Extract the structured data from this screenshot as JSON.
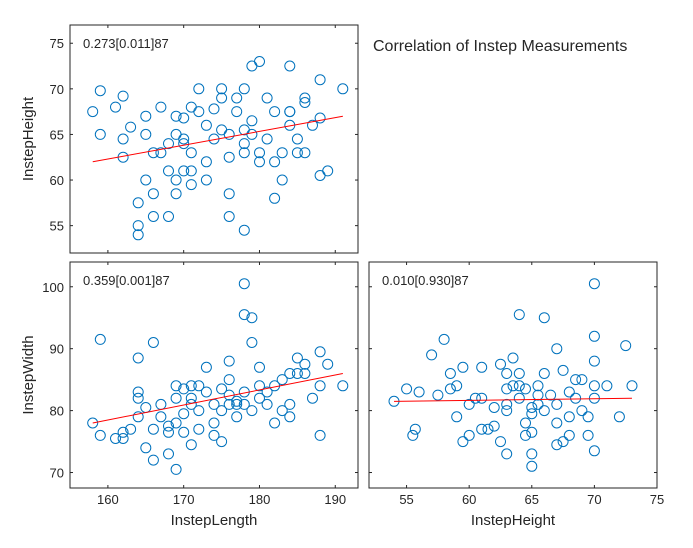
{
  "chart_data": [
    {
      "type": "scatter",
      "panel": "top-left",
      "annotation": "0.273[0.011]87",
      "xlabel": "",
      "ylabel": "InstepHeight",
      "xlim": [
        155,
        193
      ],
      "ylim": [
        52,
        77
      ],
      "xticks": [
        160,
        170,
        180,
        190
      ],
      "yticks": [
        55,
        60,
        65,
        70,
        75
      ],
      "show_xtick_labels": false,
      "fit_line": {
        "x": [
          158,
          191
        ],
        "y": [
          62.0,
          67.0
        ]
      },
      "points": [
        [
          158,
          67.5
        ],
        [
          159,
          69.8
        ],
        [
          159,
          65
        ],
        [
          161,
          68
        ],
        [
          162,
          69.2
        ],
        [
          162,
          64.5
        ],
        [
          162,
          62.5
        ],
        [
          163,
          65.8
        ],
        [
          164,
          55
        ],
        [
          164,
          54
        ],
        [
          164,
          57.5
        ],
        [
          165,
          65
        ],
        [
          165,
          67
        ],
        [
          165,
          60
        ],
        [
          166,
          58.5
        ],
        [
          166,
          63
        ],
        [
          166,
          56
        ],
        [
          167,
          63
        ],
        [
          167,
          68
        ],
        [
          168,
          56
        ],
        [
          168,
          64
        ],
        [
          168,
          61
        ],
        [
          169,
          65
        ],
        [
          169,
          67
        ],
        [
          169,
          58.5
        ],
        [
          169,
          60
        ],
        [
          170,
          64.5
        ],
        [
          170,
          64
        ],
        [
          170,
          66.8
        ],
        [
          170,
          61
        ],
        [
          171,
          59.5
        ],
        [
          171,
          61
        ],
        [
          171,
          63
        ],
        [
          171,
          68
        ],
        [
          172,
          70
        ],
        [
          172,
          67.5
        ],
        [
          173,
          66
        ],
        [
          173,
          60
        ],
        [
          173,
          62
        ],
        [
          174,
          67.8
        ],
        [
          174,
          64.5
        ],
        [
          175,
          70
        ],
        [
          175,
          69
        ],
        [
          175,
          65.5
        ],
        [
          176,
          65
        ],
        [
          176,
          58.5
        ],
        [
          176,
          56
        ],
        [
          176,
          62.5
        ],
        [
          177,
          69
        ],
        [
          177,
          67.5
        ],
        [
          178,
          70
        ],
        [
          178,
          65.5
        ],
        [
          178,
          64
        ],
        [
          178,
          63
        ],
        [
          178,
          54.5
        ],
        [
          179,
          72.5
        ],
        [
          179,
          65
        ],
        [
          179,
          66.5
        ],
        [
          180,
          73
        ],
        [
          180,
          63
        ],
        [
          180,
          62
        ],
        [
          181,
          69
        ],
        [
          181,
          64.5
        ],
        [
          182,
          67.5
        ],
        [
          182,
          62
        ],
        [
          182,
          58
        ],
        [
          183,
          63
        ],
        [
          183,
          60
        ],
        [
          184,
          72.5
        ],
        [
          184,
          67.5
        ],
        [
          184,
          67.5
        ],
        [
          184,
          66
        ],
        [
          185,
          64.5
        ],
        [
          185,
          63
        ],
        [
          186,
          69
        ],
        [
          186,
          68.5
        ],
        [
          186,
          63
        ],
        [
          187,
          66
        ],
        [
          188,
          71
        ],
        [
          188,
          60.5
        ],
        [
          188,
          66.8
        ],
        [
          189,
          61
        ],
        [
          191,
          70
        ]
      ]
    },
    {
      "type": "scatter",
      "panel": "bottom-left",
      "annotation": "0.359[0.001]87",
      "xlabel": "InstepLength",
      "ylabel": "InstepWidth",
      "xlim": [
        155,
        193
      ],
      "ylim": [
        67.5,
        104
      ],
      "xticks": [
        160,
        170,
        180,
        190
      ],
      "yticks": [
        70,
        80,
        90,
        100
      ],
      "show_xtick_labels": true,
      "fit_line": {
        "x": [
          158,
          191
        ],
        "y": [
          78.0,
          86.0
        ]
      },
      "points": [
        [
          158,
          78
        ],
        [
          159,
          91.5
        ],
        [
          159,
          76
        ],
        [
          161,
          75.5
        ],
        [
          162,
          75.5
        ],
        [
          162,
          76.5
        ],
        [
          163,
          77
        ],
        [
          164,
          82
        ],
        [
          164,
          79
        ],
        [
          164,
          83
        ],
        [
          164,
          88.5
        ],
        [
          165,
          80.5
        ],
        [
          165,
          74
        ],
        [
          166,
          91
        ],
        [
          166,
          72
        ],
        [
          166,
          77
        ],
        [
          167,
          81
        ],
        [
          167,
          79
        ],
        [
          168,
          76.5
        ],
        [
          168,
          77.5
        ],
        [
          168,
          73
        ],
        [
          169,
          70.5
        ],
        [
          169,
          78
        ],
        [
          169,
          82
        ],
        [
          169,
          84
        ],
        [
          170,
          83.5
        ],
        [
          170,
          76.5
        ],
        [
          170,
          79.5
        ],
        [
          171,
          82
        ],
        [
          171,
          84
        ],
        [
          171,
          81
        ],
        [
          171,
          74.5
        ],
        [
          172,
          84
        ],
        [
          172,
          80
        ],
        [
          172,
          77
        ],
        [
          173,
          87
        ],
        [
          173,
          83
        ],
        [
          174,
          81
        ],
        [
          174,
          76
        ],
        [
          174,
          78
        ],
        [
          175,
          83.5
        ],
        [
          175,
          75
        ],
        [
          175,
          80
        ],
        [
          176,
          82.5
        ],
        [
          176,
          81
        ],
        [
          176,
          88
        ],
        [
          176,
          85
        ],
        [
          177,
          81
        ],
        [
          177,
          81.5
        ],
        [
          177,
          79
        ],
        [
          178,
          100.5
        ],
        [
          178,
          95.5
        ],
        [
          178,
          81
        ],
        [
          178,
          83
        ],
        [
          179,
          95
        ],
        [
          179,
          91
        ],
        [
          179,
          80
        ],
        [
          180,
          84
        ],
        [
          180,
          87
        ],
        [
          180,
          82
        ],
        [
          181,
          81
        ],
        [
          181,
          83
        ],
        [
          182,
          78
        ],
        [
          182,
          84
        ],
        [
          183,
          85
        ],
        [
          183,
          80
        ],
        [
          184,
          86
        ],
        [
          184,
          81
        ],
        [
          184,
          79
        ],
        [
          185,
          88.5
        ],
        [
          185,
          86
        ],
        [
          186,
          86
        ],
        [
          186,
          87.5
        ],
        [
          187,
          82
        ],
        [
          188,
          89.5
        ],
        [
          188,
          84
        ],
        [
          188,
          76
        ],
        [
          189,
          87.5
        ],
        [
          191,
          84
        ]
      ]
    },
    {
      "type": "scatter",
      "panel": "bottom-right",
      "annotation": "0.010[0.930]87",
      "xlabel": "InstepHeight",
      "ylabel": "",
      "xlim": [
        52,
        75
      ],
      "ylim": [
        67.5,
        104
      ],
      "xticks": [
        55,
        60,
        65,
        70,
        75
      ],
      "yticks": [
        70,
        80,
        90,
        100
      ],
      "show_xtick_labels": true,
      "fit_line": {
        "x": [
          54,
          73
        ],
        "y": [
          81.5,
          82.0
        ]
      },
      "points": [
        [
          54,
          81.5
        ],
        [
          55,
          83.5
        ],
        [
          55.5,
          76
        ],
        [
          55.7,
          77
        ],
        [
          56,
          83
        ],
        [
          57,
          89
        ],
        [
          57.5,
          82.5
        ],
        [
          58,
          91.5
        ],
        [
          58.5,
          86
        ],
        [
          58.5,
          83.5
        ],
        [
          59,
          84
        ],
        [
          59,
          79
        ],
        [
          59.5,
          87
        ],
        [
          59.5,
          75
        ],
        [
          60,
          81
        ],
        [
          60,
          76
        ],
        [
          60.5,
          82
        ],
        [
          61,
          82
        ],
        [
          61,
          87
        ],
        [
          61,
          77
        ],
        [
          61.5,
          77
        ],
        [
          62,
          80.5
        ],
        [
          62,
          77.5
        ],
        [
          62.5,
          75
        ],
        [
          62.5,
          87.5
        ],
        [
          63,
          86
        ],
        [
          63,
          83.5
        ],
        [
          63,
          73
        ],
        [
          63,
          81
        ],
        [
          63,
          80
        ],
        [
          63.5,
          88.5
        ],
        [
          63.5,
          84
        ],
        [
          64,
          84
        ],
        [
          64,
          95.5
        ],
        [
          64,
          86
        ],
        [
          64,
          82
        ],
        [
          64.5,
          78
        ],
        [
          64.5,
          76
        ],
        [
          64.5,
          83.5
        ],
        [
          65,
          80.5
        ],
        [
          65,
          76.5
        ],
        [
          65,
          79.5
        ],
        [
          65,
          73
        ],
        [
          65,
          71
        ],
        [
          65.5,
          84
        ],
        [
          65.5,
          81
        ],
        [
          65.5,
          82.5
        ],
        [
          66,
          95
        ],
        [
          66,
          86
        ],
        [
          66,
          80
        ],
        [
          66.5,
          82.5
        ],
        [
          67,
          74.5
        ],
        [
          67,
          78
        ],
        [
          67,
          90
        ],
        [
          67,
          81
        ],
        [
          67.5,
          75
        ],
        [
          67.5,
          86.5
        ],
        [
          68,
          79
        ],
        [
          68,
          76
        ],
        [
          68,
          83
        ],
        [
          68.5,
          85
        ],
        [
          68.5,
          82
        ],
        [
          69,
          85
        ],
        [
          69,
          80
        ],
        [
          69.5,
          76
        ],
        [
          69.5,
          79
        ],
        [
          70,
          100.5
        ],
        [
          70,
          92
        ],
        [
          70,
          88
        ],
        [
          70,
          84
        ],
        [
          70,
          73.5
        ],
        [
          70,
          82
        ],
        [
          71,
          84
        ],
        [
          72,
          79
        ],
        [
          72.5,
          90.5
        ],
        [
          73,
          84
        ]
      ]
    }
  ],
  "title_text": "Correlation of Instep Measurements"
}
